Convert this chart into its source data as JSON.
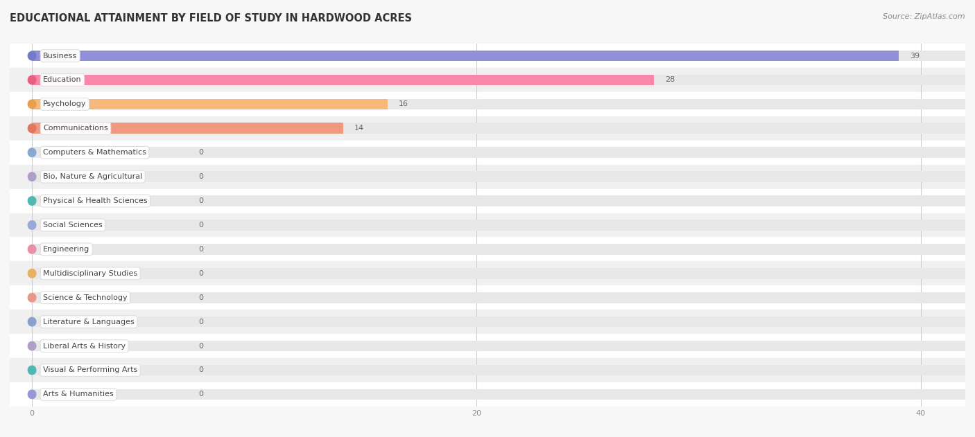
{
  "title": "EDUCATIONAL ATTAINMENT BY FIELD OF STUDY IN HARDWOOD ACRES",
  "source": "Source: ZipAtlas.com",
  "categories": [
    "Business",
    "Education",
    "Psychology",
    "Communications",
    "Computers & Mathematics",
    "Bio, Nature & Agricultural",
    "Physical & Health Sciences",
    "Social Sciences",
    "Engineering",
    "Multidisciplinary Studies",
    "Science & Technology",
    "Literature & Languages",
    "Liberal Arts & History",
    "Visual & Performing Arts",
    "Arts & Humanities"
  ],
  "values": [
    39,
    28,
    16,
    14,
    0,
    0,
    0,
    0,
    0,
    0,
    0,
    0,
    0,
    0,
    0
  ],
  "bar_colors": [
    "#9090d8",
    "#f888aa",
    "#f8b87a",
    "#f09880",
    "#a8c4e8",
    "#c8b8d8",
    "#70ccc8",
    "#b8c4e8",
    "#f8a8c0",
    "#f8c88a",
    "#f8b0a8",
    "#a8b8e0",
    "#c8b8d8",
    "#70ccc8",
    "#b0bce8"
  ],
  "label_border_colors": [
    "#7878c8",
    "#e86080",
    "#e8a050",
    "#e07860",
    "#88aad0",
    "#b0a0c8",
    "#50b8b0",
    "#98a8d8",
    "#e890a8",
    "#e8b060",
    "#e89888",
    "#88a0d0",
    "#b0a0c8",
    "#50b8b0",
    "#9898d8"
  ],
  "xlim_max": 42,
  "xticks": [
    0,
    20,
    40
  ],
  "background_color": "#f7f7f7",
  "row_bg_even": "#ffffff",
  "row_bg_odd": "#f0f0f0",
  "bar_bg_color": "#e8e8e8",
  "title_fontsize": 10.5,
  "source_fontsize": 8,
  "bar_height": 0.45,
  "label_fontsize": 8,
  "value_fontsize": 8
}
